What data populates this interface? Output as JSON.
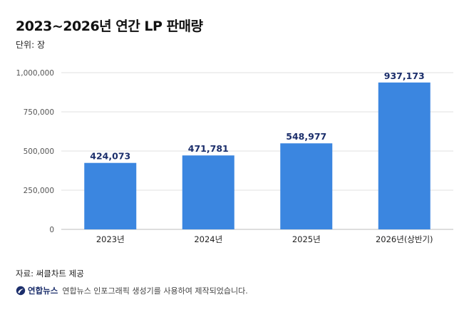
{
  "title": "2023~2026년 연간 LP 판매량",
  "unit": "단위: 장",
  "source": "자료: 써클차트 제공",
  "credit": {
    "logo_text": "연합뉴스",
    "text": "연합뉴스 인포그래픽 생성기를 사용하여 제작되었습니다."
  },
  "colors": {
    "bar": "#3b86e0",
    "value_label": "#1b2e6b",
    "grid": "#e2e2e2"
  },
  "chart_data": {
    "type": "bar",
    "categories": [
      "2023년",
      "2024년",
      "2025년",
      "2026년(상반기)"
    ],
    "values": [
      424073,
      471781,
      548977,
      937173
    ],
    "value_labels": [
      "424,073",
      "471,781",
      "548,977",
      "937,173"
    ],
    "yticks": [
      0,
      250000,
      500000,
      750000,
      1000000
    ],
    "ytick_labels": [
      "0",
      "250,000",
      "500,000",
      "750,000",
      "1,000,000"
    ],
    "ylim": [
      0,
      1000000
    ],
    "grid": true,
    "legend": "none"
  }
}
